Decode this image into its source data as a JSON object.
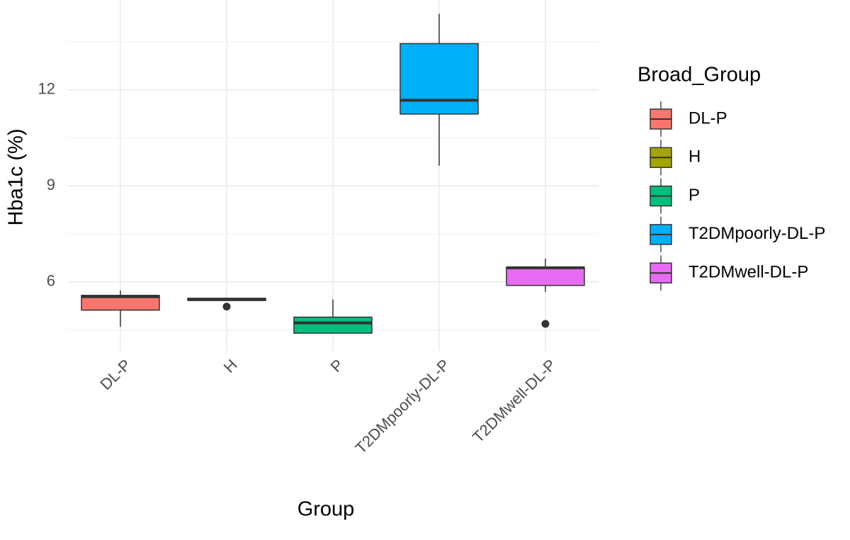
{
  "chart_data": {
    "type": "box",
    "x_label": "Group",
    "y_label": "Hba1c (%)",
    "categories": [
      "DL-P",
      "H",
      "P",
      "T2DMpoorly-DL-P",
      "T2DMwell-DL-P"
    ],
    "colors": [
      "#F8766D",
      "#A3A500",
      "#00BF7D",
      "#00B0F6",
      "#E76BF3"
    ],
    "boxes": [
      {
        "min": 4.6,
        "q1": 5.12,
        "median": 5.54,
        "q3": 5.58,
        "max": 5.73,
        "outliers": []
      },
      {
        "min": 5.42,
        "q1": 5.42,
        "median": 5.45,
        "q3": 5.49,
        "max": 5.51,
        "outliers": [
          5.23
        ]
      },
      {
        "min": 4.4,
        "q1": 4.4,
        "median": 4.72,
        "q3": 4.9,
        "max": 5.45,
        "outliers": []
      },
      {
        "min": 9.63,
        "q1": 11.24,
        "median": 11.67,
        "q3": 13.44,
        "max": 14.37,
        "outliers": []
      },
      {
        "min": 5.69,
        "q1": 5.89,
        "median": 6.44,
        "q3": 6.46,
        "max": 6.73,
        "outliers": [
          4.69
        ]
      }
    ],
    "ylim": [
      3.85,
      14.8
    ],
    "yticks": [
      6,
      9,
      12
    ],
    "minor_gridlines": [
      4.5,
      7.5,
      10.5,
      13.5
    ],
    "grid": true,
    "legend": {
      "title": "Broad_Group",
      "position": "right"
    }
  }
}
